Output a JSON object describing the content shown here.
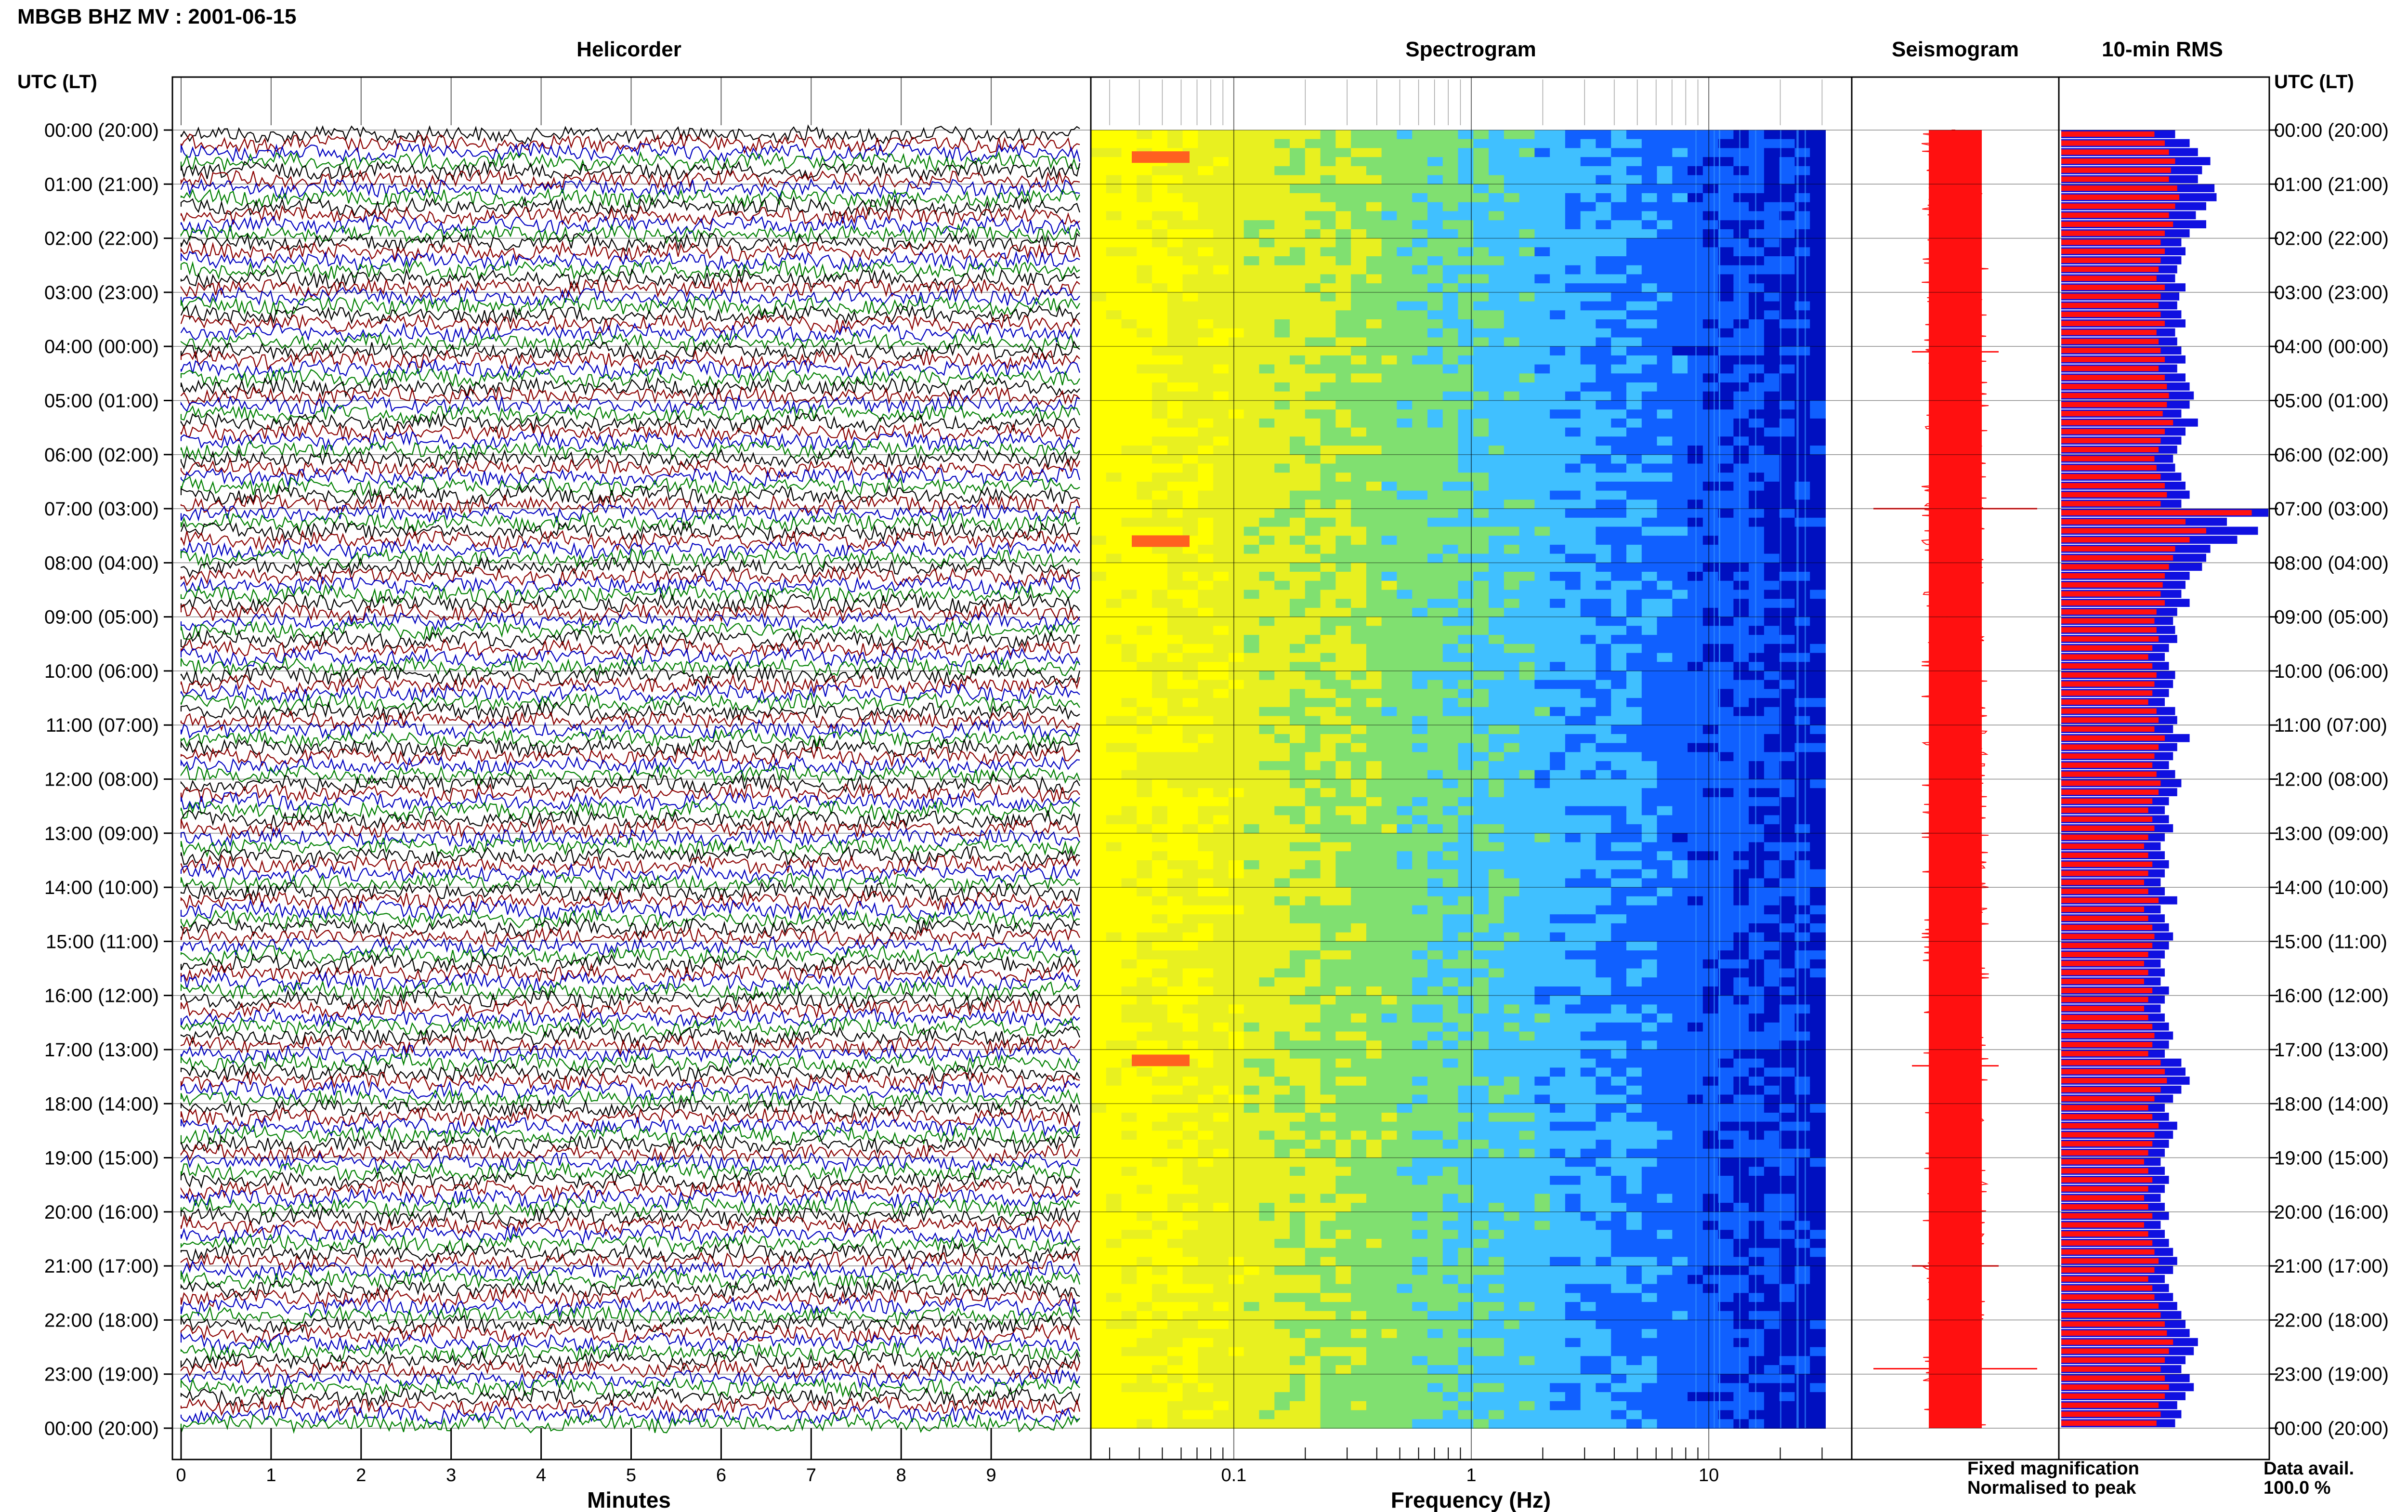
{
  "title": "MBGB BHZ MV : 2001-06-15",
  "panels": {
    "helicorder": "Helicorder",
    "spectrogram": "Spectrogram",
    "seismogram": "Seismogram",
    "rms": "10-min RMS"
  },
  "axis": {
    "left_header": "UTC (LT)",
    "right_header": "UTC (LT)",
    "time_labels": [
      "00:00 (20:00)",
      "01:00 (21:00)",
      "02:00 (22:00)",
      "03:00 (23:00)",
      "04:00 (00:00)",
      "05:00 (01:00)",
      "06:00 (02:00)",
      "07:00 (03:00)",
      "08:00 (04:00)",
      "09:00 (05:00)",
      "10:00 (06:00)",
      "11:00 (07:00)",
      "12:00 (08:00)",
      "13:00 (09:00)",
      "14:00 (10:00)",
      "15:00 (11:00)",
      "16:00 (12:00)",
      "17:00 (13:00)",
      "18:00 (14:00)",
      "19:00 (15:00)",
      "20:00 (16:00)",
      "21:00 (17:00)",
      "22:00 (18:00)",
      "23:00 (19:00)",
      "00:00 (20:00)"
    ],
    "minutes_label": "Minutes",
    "minutes_ticks": [
      "0",
      "1",
      "2",
      "3",
      "4",
      "5",
      "6",
      "7",
      "8",
      "9"
    ],
    "frequency_label": "Frequency (Hz)",
    "frequency_ticks": [
      "0.1",
      "1",
      "10"
    ]
  },
  "legend": {
    "fixed": "Fixed magnification",
    "normalised": "Normalised to peak",
    "fixed_color": "#1010e0",
    "normalised_color": "#ff1010"
  },
  "availability": {
    "label": "Data avail.",
    "value": "100.0 %"
  },
  "chart_data": {
    "type": "heatmap",
    "helicorder": {
      "x_range_minutes": [
        0,
        10
      ],
      "trace_interval_minutes": 10,
      "traces_per_day": 144,
      "trace_colors": [
        "#000000",
        "#8b0000",
        "#0000c0",
        "#008000"
      ]
    },
    "spectrogram": {
      "x_scale": "log",
      "x_range_hz": [
        0.025,
        40
      ],
      "colormap": [
        "#ffff00",
        "#e8f020",
        "#80e070",
        "#40c0ff",
        "#1060ff",
        "#0010c0"
      ],
      "hotspots_utc_hours": [
        0.5,
        7.6,
        17.2
      ]
    },
    "rms_10min": {
      "fixed_magnification": [
        0.55,
        0.62,
        0.66,
        0.72,
        0.68,
        0.66,
        0.74,
        0.75,
        0.7,
        0.65,
        0.7,
        0.62,
        0.58,
        0.6,
        0.58,
        0.56,
        0.55,
        0.6,
        0.57,
        0.56,
        0.58,
        0.6,
        0.55,
        0.56,
        0.58,
        0.6,
        0.56,
        0.6,
        0.62,
        0.64,
        0.62,
        0.58,
        0.66,
        0.6,
        0.58,
        0.56,
        0.54,
        0.55,
        0.58,
        0.6,
        0.62,
        0.58,
        1.0,
        0.8,
        0.95,
        0.85,
        0.72,
        0.7,
        0.68,
        0.62,
        0.6,
        0.58,
        0.62,
        0.56,
        0.54,
        0.55,
        0.56,
        0.52,
        0.5,
        0.52,
        0.55,
        0.54,
        0.52,
        0.5,
        0.55,
        0.56,
        0.54,
        0.62,
        0.56,
        0.54,
        0.52,
        0.55,
        0.58,
        0.56,
        0.52,
        0.5,
        0.52,
        0.54,
        0.5,
        0.48,
        0.5,
        0.52,
        0.5,
        0.48,
        0.5,
        0.56,
        0.48,
        0.5,
        0.52,
        0.54,
        0.52,
        0.5,
        0.48,
        0.5,
        0.48,
        0.52,
        0.5,
        0.48,
        0.5,
        0.52,
        0.54,
        0.52,
        0.5,
        0.58,
        0.6,
        0.62,
        0.58,
        0.54,
        0.5,
        0.52,
        0.56,
        0.54,
        0.52,
        0.5,
        0.48,
        0.5,
        0.52,
        0.5,
        0.48,
        0.5,
        0.52,
        0.48,
        0.5,
        0.52,
        0.54,
        0.56,
        0.54,
        0.5,
        0.52,
        0.54,
        0.56,
        0.58,
        0.6,
        0.62,
        0.66,
        0.64,
        0.6,
        0.58,
        0.62,
        0.64,
        0.6,
        0.56,
        0.58,
        0.55
      ],
      "normalised_to_peak": [
        0.45,
        0.5,
        0.52,
        0.55,
        0.53,
        0.52,
        0.56,
        0.57,
        0.55,
        0.52,
        0.54,
        0.5,
        0.48,
        0.5,
        0.48,
        0.47,
        0.46,
        0.5,
        0.48,
        0.47,
        0.48,
        0.5,
        0.46,
        0.47,
        0.48,
        0.5,
        0.47,
        0.5,
        0.51,
        0.52,
        0.51,
        0.49,
        0.54,
        0.5,
        0.48,
        0.47,
        0.45,
        0.46,
        0.48,
        0.5,
        0.51,
        0.48,
        0.92,
        0.6,
        0.7,
        0.62,
        0.55,
        0.54,
        0.52,
        0.5,
        0.49,
        0.48,
        0.5,
        0.46,
        0.45,
        0.46,
        0.47,
        0.44,
        0.42,
        0.44,
        0.46,
        0.45,
        0.44,
        0.42,
        0.46,
        0.47,
        0.45,
        0.5,
        0.47,
        0.45,
        0.44,
        0.46,
        0.48,
        0.47,
        0.44,
        0.42,
        0.44,
        0.45,
        0.42,
        0.4,
        0.42,
        0.44,
        0.42,
        0.4,
        0.42,
        0.47,
        0.4,
        0.42,
        0.44,
        0.45,
        0.44,
        0.42,
        0.4,
        0.42,
        0.4,
        0.44,
        0.42,
        0.4,
        0.42,
        0.44,
        0.45,
        0.44,
        0.42,
        0.48,
        0.5,
        0.51,
        0.48,
        0.45,
        0.42,
        0.44,
        0.47,
        0.45,
        0.44,
        0.42,
        0.4,
        0.42,
        0.44,
        0.42,
        0.4,
        0.42,
        0.44,
        0.4,
        0.42,
        0.44,
        0.45,
        0.47,
        0.45,
        0.42,
        0.44,
        0.45,
        0.47,
        0.48,
        0.5,
        0.51,
        0.54,
        0.52,
        0.5,
        0.48,
        0.5,
        0.52,
        0.5,
        0.47,
        0.48,
        0.46
      ]
    },
    "seismogram": {
      "spikes_utc_hours": [
        7.0,
        22.9,
        4.1,
        17.3,
        21.0
      ]
    }
  }
}
